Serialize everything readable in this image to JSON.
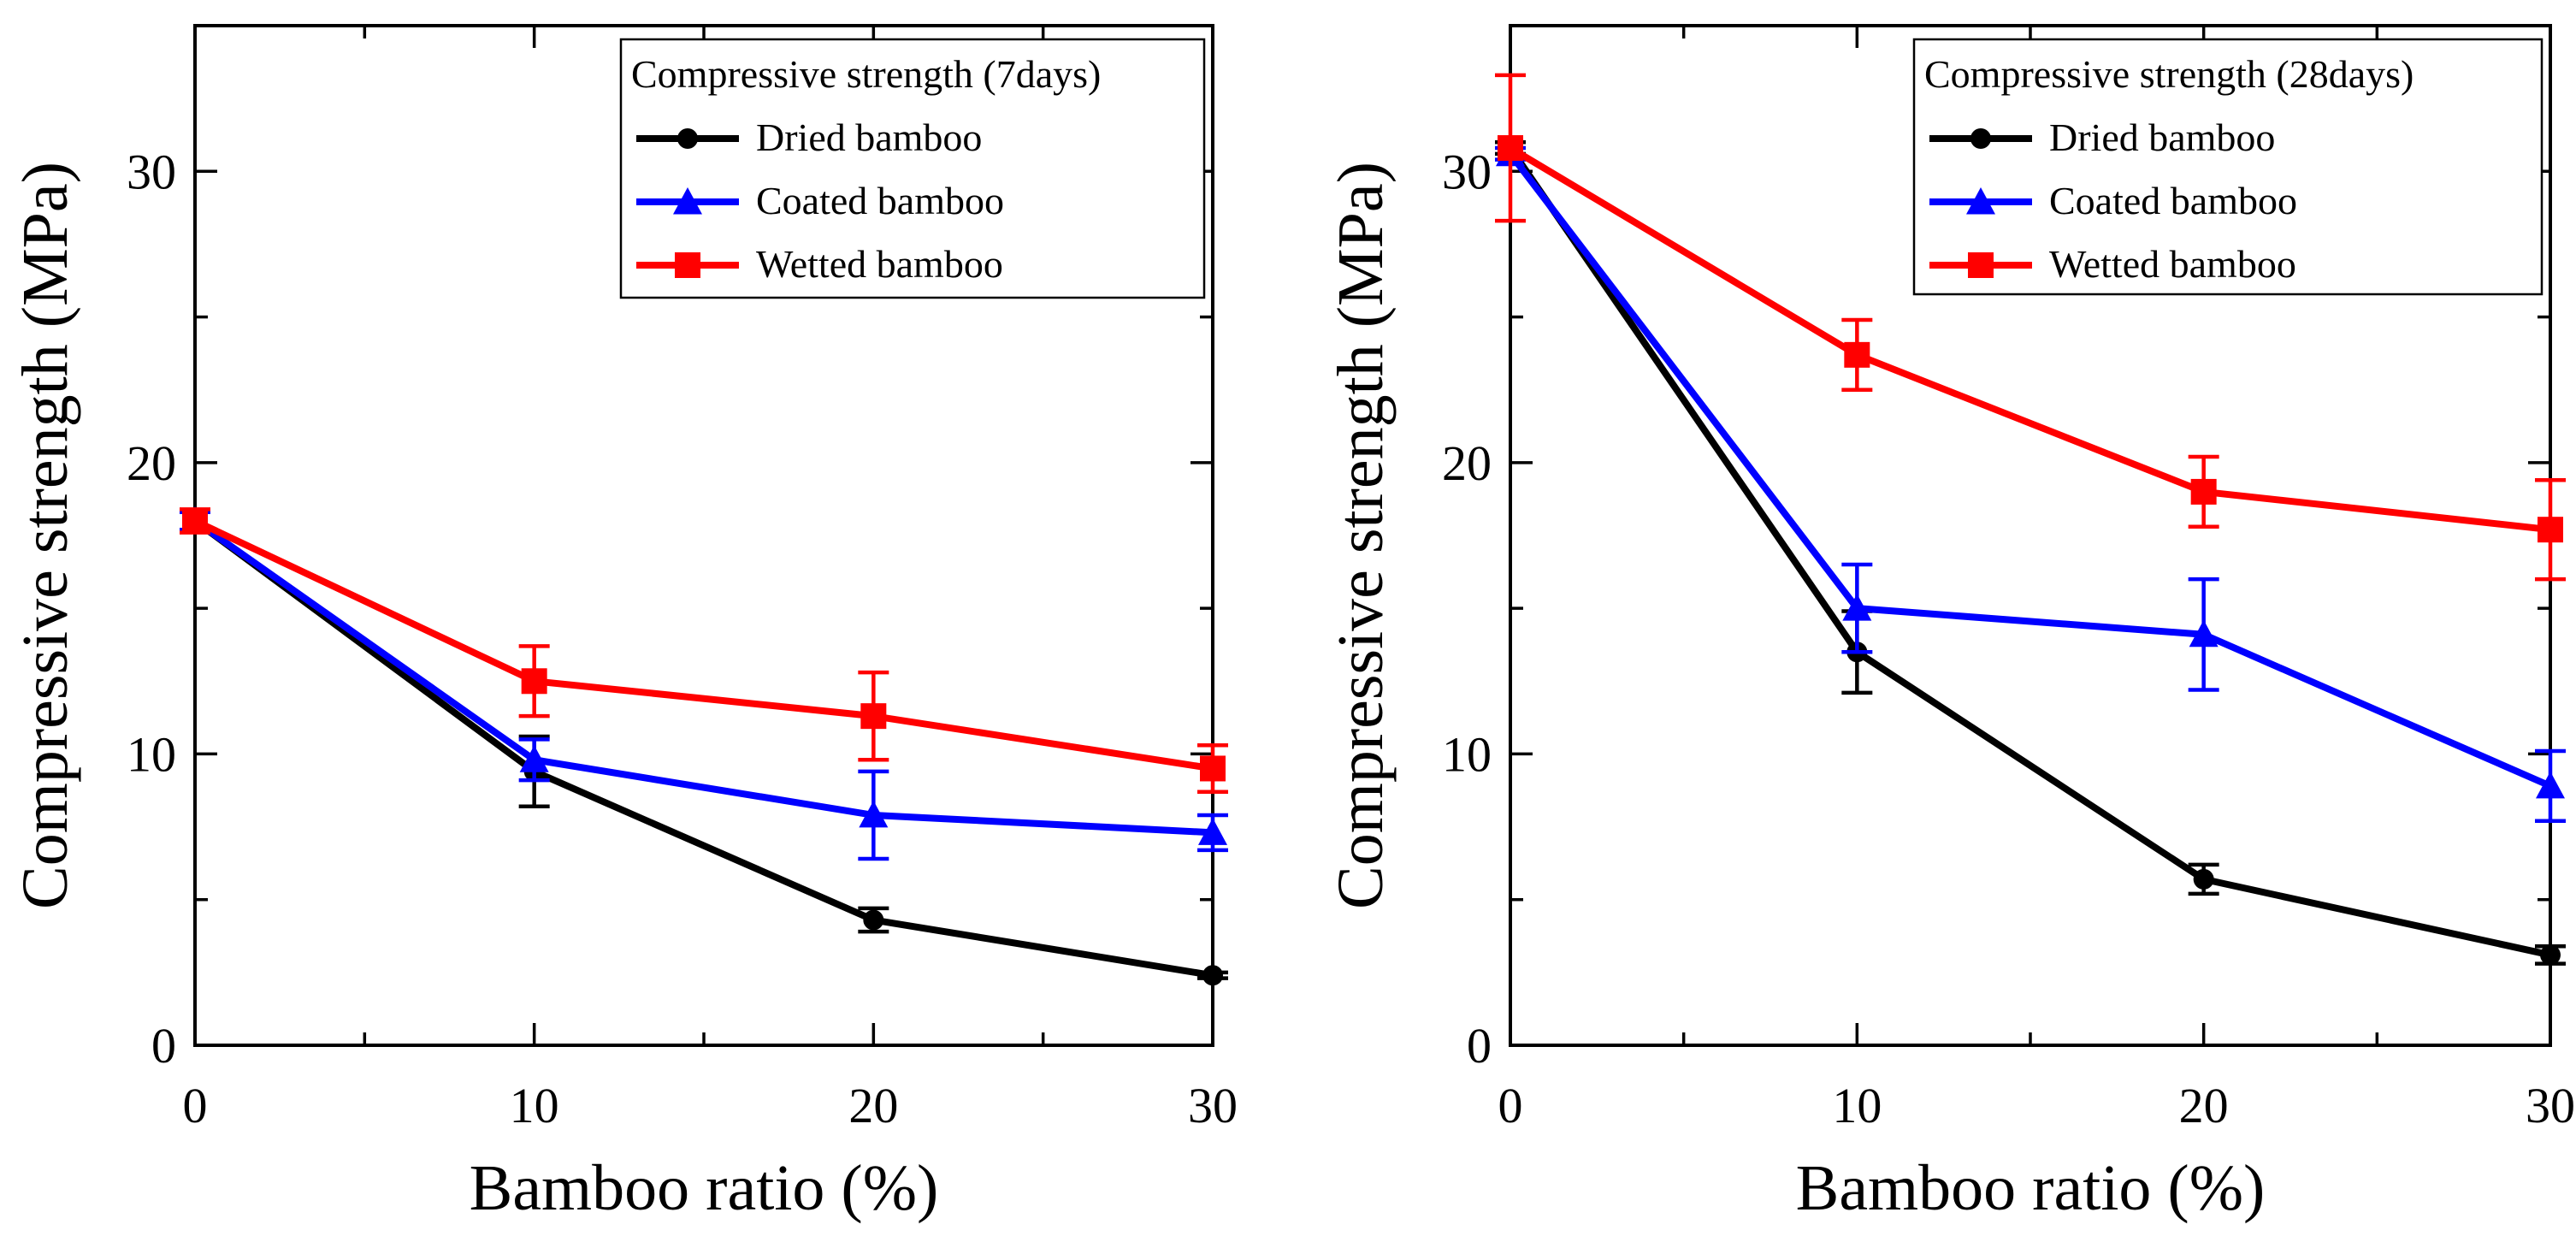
{
  "chart_data": [
    {
      "type": "line",
      "legend_title": "Compressive strength (7days)",
      "legend_position": "top-right",
      "xlabel": "Bamboo ratio (%)",
      "ylabel": "Compressive strength (MPa)",
      "xlim": [
        0,
        30
      ],
      "ylim": [
        0,
        35
      ],
      "xticks": [
        0,
        10,
        20,
        30
      ],
      "xtick_labels": [
        "0",
        "10",
        "20",
        "30"
      ],
      "yticks": [
        0,
        10,
        20,
        30
      ],
      "ytick_labels": [
        "0",
        "10",
        "20",
        "30"
      ],
      "x": [
        0,
        10,
        20,
        30
      ],
      "series": [
        {
          "name": "Dried bamboo",
          "color": "#000000",
          "marker": "circle",
          "values": [
            18.0,
            9.4,
            4.3,
            2.4
          ],
          "errors": [
            0.3,
            1.2,
            0.4,
            0.1
          ]
        },
        {
          "name": "Coated bamboo",
          "color": "#0000ff",
          "marker": "triangle",
          "values": [
            18.0,
            9.8,
            7.9,
            7.3
          ],
          "errors": [
            0.3,
            0.7,
            1.5,
            0.6
          ]
        },
        {
          "name": "Wetted bamboo",
          "color": "#ff0000",
          "marker": "square",
          "values": [
            18.0,
            12.5,
            11.3,
            9.5
          ],
          "errors": [
            0.4,
            1.2,
            1.5,
            0.8
          ]
        }
      ]
    },
    {
      "type": "line",
      "legend_title": "Compressive strength (28days)",
      "legend_position": "top-right",
      "xlabel": "Bamboo ratio (%)",
      "ylabel": "Compressive strength (MPa)",
      "xlim": [
        0,
        30
      ],
      "ylim": [
        0,
        35
      ],
      "xticks": [
        0,
        10,
        20,
        30
      ],
      "xtick_labels": [
        "0",
        "10",
        "20",
        "30"
      ],
      "yticks": [
        0,
        10,
        20,
        30
      ],
      "ytick_labels": [
        "0",
        "10",
        "20",
        "30"
      ],
      "x": [
        0,
        10,
        20,
        30
      ],
      "series": [
        {
          "name": "Dried bamboo",
          "color": "#000000",
          "marker": "circle",
          "values": [
            30.8,
            13.5,
            5.7,
            3.1
          ],
          "errors": [
            0.2,
            1.4,
            0.5,
            0.3
          ]
        },
        {
          "name": "Coated bamboo",
          "color": "#0000ff",
          "marker": "triangle",
          "values": [
            30.6,
            15.0,
            14.1,
            8.9
          ],
          "errors": [
            0.2,
            1.5,
            1.9,
            1.2
          ]
        },
        {
          "name": "Wetted bamboo",
          "color": "#ff0000",
          "marker": "square",
          "values": [
            30.8,
            23.7,
            19.0,
            17.7
          ],
          "errors": [
            2.5,
            1.2,
            1.2,
            1.7
          ]
        }
      ]
    }
  ]
}
